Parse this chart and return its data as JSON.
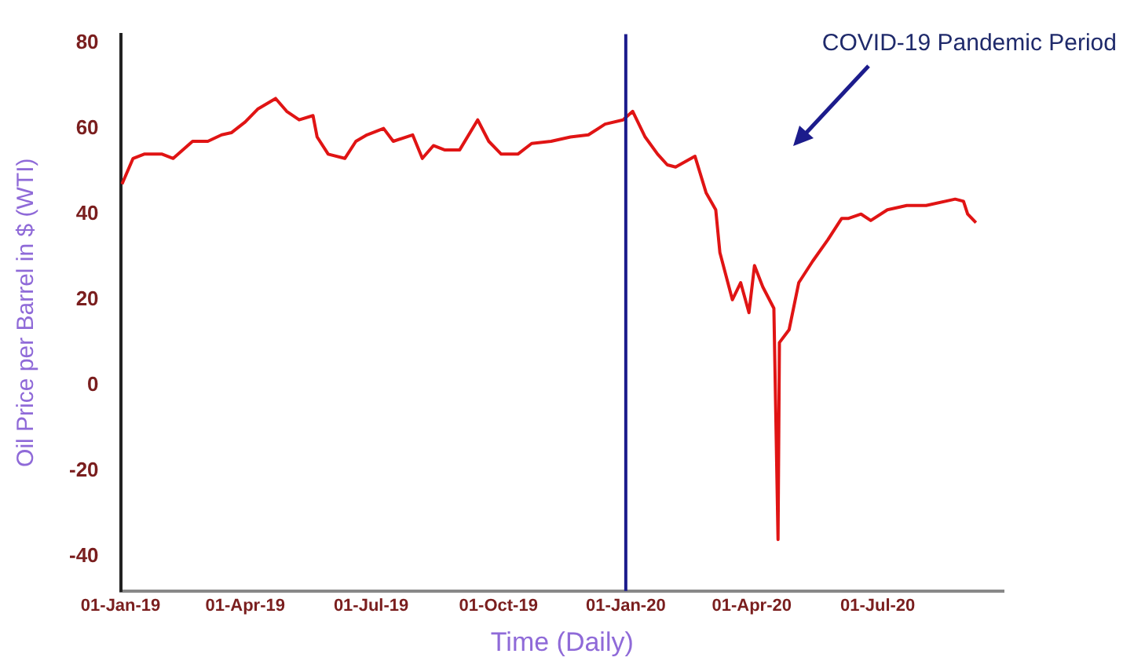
{
  "chart_data": {
    "type": "line",
    "xlabel": "Time (Daily)",
    "ylabel": "Oil Price per Barrel in $ (WTI)",
    "annotations": [
      "COVID-19 Pandemic Period"
    ],
    "xlim": [
      "2019-01-01",
      "2020-09-30"
    ],
    "xticks": [
      {
        "value": "2019-01-01",
        "label": "01-Jan-19"
      },
      {
        "value": "2019-04-01",
        "label": "01-Apr-19"
      },
      {
        "value": "2019-07-01",
        "label": "01-Jul-19"
      },
      {
        "value": "2019-10-01",
        "label": "01-Oct-19"
      },
      {
        "value": "2020-01-01",
        "label": "01-Jan-20"
      },
      {
        "value": "2020-04-01",
        "label": "01-Apr-20"
      },
      {
        "value": "2020-07-01",
        "label": "01-Jul-20"
      }
    ],
    "ylim": [
      -48,
      82
    ],
    "yticks": [
      -40,
      -20,
      0,
      20,
      40,
      60,
      80
    ],
    "grid": false,
    "marker": "none",
    "legend": false,
    "ref_lines": [
      {
        "axis": "x",
        "value": "2020-01-01",
        "color": "#1c1c8c"
      }
    ],
    "x": [
      "2019-01-02",
      "2019-01-10",
      "2019-01-18",
      "2019-01-31",
      "2019-02-08",
      "2019-02-22",
      "2019-03-05",
      "2019-03-15",
      "2019-03-22",
      "2019-04-01",
      "2019-04-10",
      "2019-04-23",
      "2019-05-01",
      "2019-05-10",
      "2019-05-20",
      "2019-05-23",
      "2019-05-31",
      "2019-06-12",
      "2019-06-20",
      "2019-06-28",
      "2019-07-10",
      "2019-07-17",
      "2019-07-31",
      "2019-08-07",
      "2019-08-15",
      "2019-08-23",
      "2019-09-03",
      "2019-09-16",
      "2019-09-24",
      "2019-10-03",
      "2019-10-15",
      "2019-10-25",
      "2019-11-08",
      "2019-11-22",
      "2019-12-05",
      "2019-12-17",
      "2019-12-30",
      "2020-01-06",
      "2020-01-15",
      "2020-01-24",
      "2020-01-31",
      "2020-02-06",
      "2020-02-20",
      "2020-02-28",
      "2020-03-06",
      "2020-03-09",
      "2020-03-18",
      "2020-03-24",
      "2020-03-30",
      "2020-04-03",
      "2020-04-09",
      "2020-04-17",
      "2020-04-20",
      "2020-04-21",
      "2020-04-28",
      "2020-05-05",
      "2020-05-15",
      "2020-05-26",
      "2020-06-05",
      "2020-06-10",
      "2020-06-19",
      "2020-06-26",
      "2020-07-08",
      "2020-07-22",
      "2020-08-05",
      "2020-08-26",
      "2020-09-01",
      "2020-09-04",
      "2020-09-10"
    ],
    "series": [
      {
        "color": "#e01414",
        "values": [
          47,
          53,
          54,
          54,
          53,
          57,
          57,
          58.5,
          59,
          61.5,
          64.5,
          67,
          64,
          62,
          63,
          58,
          54,
          53,
          57,
          58.5,
          60,
          57,
          58.5,
          53,
          56,
          55,
          55,
          62,
          57,
          54,
          54,
          56.5,
          57,
          58,
          58.5,
          61,
          62,
          64,
          58,
          54,
          51.5,
          51,
          53.5,
          45,
          41,
          31,
          20,
          24,
          17,
          28,
          23,
          18,
          -36,
          10,
          13,
          24,
          29,
          34,
          39,
          39,
          40,
          38.5,
          41,
          42,
          42,
          43.5,
          43,
          40,
          38
        ]
      }
    ]
  }
}
